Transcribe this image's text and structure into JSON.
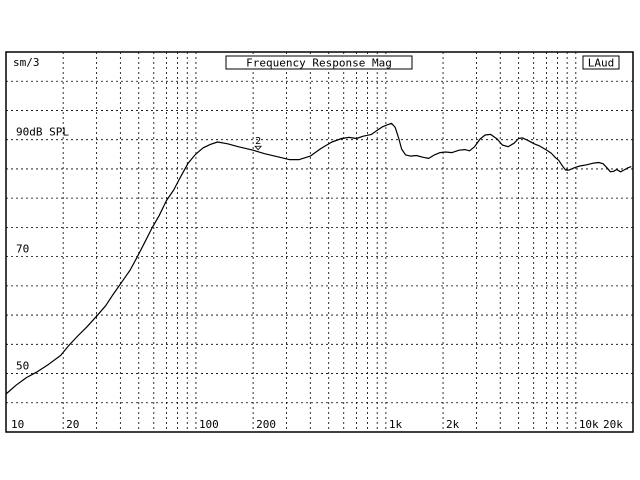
{
  "header": {
    "corner_left": "sm/3",
    "title": "Frequency Response Mag",
    "corner_right": "LAud"
  },
  "chart_data": {
    "type": "line",
    "title": "Frequency Response Mag",
    "x_scale": "log",
    "xlim": [
      10,
      20000
    ],
    "ylim": [
      40,
      105
    ],
    "grid": true,
    "x_major_ticks": [
      10,
      100,
      1000,
      10000
    ],
    "x_minor_ticks": [
      20,
      30,
      40,
      50,
      60,
      70,
      80,
      90,
      200,
      300,
      400,
      500,
      600,
      700,
      800,
      900,
      2000,
      3000,
      4000,
      5000,
      6000,
      7000,
      8000,
      9000,
      20000
    ],
    "x_tick_labels": [
      {
        "value": 10,
        "label": "10"
      },
      {
        "value": 20,
        "label": "20"
      },
      {
        "value": 100,
        "label": "100"
      },
      {
        "value": 200,
        "label": "200"
      },
      {
        "value": 1000,
        "label": "1k"
      },
      {
        "value": 2000,
        "label": "2k"
      },
      {
        "value": 10000,
        "label": "10k"
      },
      {
        "value": 20000,
        "label": "20k"
      }
    ],
    "y_gridlines": [
      45,
      50,
      55,
      60,
      65,
      70,
      75,
      80,
      85,
      90,
      95,
      100
    ],
    "y_tick_labels": [
      {
        "value": 90,
        "label": "90dB SPL"
      },
      {
        "value": 70,
        "label": "70"
      },
      {
        "value": 50,
        "label": "50"
      }
    ],
    "series": [
      {
        "marker": "2",
        "marker_x": 200,
        "points": [
          [
            10,
            46.5
          ],
          [
            11.3,
            48
          ],
          [
            12.8,
            49.3
          ],
          [
            14.6,
            50.3
          ],
          [
            16.8,
            51.6
          ],
          [
            19.4,
            53.1
          ],
          [
            21.4,
            54.8
          ],
          [
            24,
            56.5
          ],
          [
            26.7,
            58
          ],
          [
            30,
            59.8
          ],
          [
            33.5,
            61.6
          ],
          [
            36.6,
            63.5
          ],
          [
            41,
            65.8
          ],
          [
            45,
            67.7
          ],
          [
            49,
            69.9
          ],
          [
            53.5,
            72.3
          ],
          [
            58.5,
            74.8
          ],
          [
            64,
            77
          ],
          [
            70,
            79.6
          ],
          [
            76.4,
            81.4
          ],
          [
            83.5,
            83.8
          ],
          [
            91,
            86
          ],
          [
            99.6,
            87.5
          ],
          [
            109,
            88.6
          ],
          [
            119,
            89.2
          ],
          [
            130,
            89.6
          ],
          [
            147,
            89.3
          ],
          [
            167,
            88.8
          ],
          [
            200,
            88.2
          ],
          [
            230,
            87.6
          ],
          [
            275,
            87
          ],
          [
            310,
            86.6
          ],
          [
            350,
            86.6
          ],
          [
            400,
            87.2
          ],
          [
            455,
            88.5
          ],
          [
            520,
            89.6
          ],
          [
            585,
            90.2
          ],
          [
            640,
            90.4
          ],
          [
            700,
            90.2
          ],
          [
            760,
            90.6
          ],
          [
            840,
            90.9
          ],
          [
            900,
            91.6
          ],
          [
            960,
            92.2
          ],
          [
            1010,
            92.5
          ],
          [
            1070,
            92.8
          ],
          [
            1120,
            92.1
          ],
          [
            1170,
            90.2
          ],
          [
            1210,
            88.4
          ],
          [
            1270,
            87.4
          ],
          [
            1350,
            87.2
          ],
          [
            1450,
            87.3
          ],
          [
            1560,
            87
          ],
          [
            1680,
            86.8
          ],
          [
            1800,
            87.4
          ],
          [
            1930,
            87.8
          ],
          [
            2060,
            87.9
          ],
          [
            2230,
            87.8
          ],
          [
            2430,
            88.2
          ],
          [
            2600,
            88.3
          ],
          [
            2760,
            88.1
          ],
          [
            2930,
            88.8
          ],
          [
            3130,
            90.1
          ],
          [
            3330,
            90.8
          ],
          [
            3560,
            90.9
          ],
          [
            3860,
            90.1
          ],
          [
            4100,
            89.1
          ],
          [
            4400,
            88.8
          ],
          [
            4730,
            89.4
          ],
          [
            5000,
            90.2
          ],
          [
            5240,
            90.3
          ],
          [
            5580,
            89.9
          ],
          [
            6040,
            89.3
          ],
          [
            6460,
            88.9
          ],
          [
            6950,
            88.3
          ],
          [
            7420,
            87.7
          ],
          [
            7830,
            86.9
          ],
          [
            8120,
            86.5
          ],
          [
            8550,
            85.4
          ],
          [
            8850,
            84.8
          ],
          [
            9200,
            84.8
          ],
          [
            9800,
            85.2
          ],
          [
            10500,
            85.5
          ],
          [
            11400,
            85.7
          ],
          [
            12400,
            86.0
          ],
          [
            13200,
            86.1
          ],
          [
            13900,
            85.9
          ],
          [
            14600,
            85.2
          ],
          [
            15200,
            84.5
          ],
          [
            15800,
            84.6
          ],
          [
            16400,
            84.9
          ],
          [
            17200,
            84.5
          ],
          [
            17900,
            84.8
          ],
          [
            18800,
            85.2
          ],
          [
            19600,
            85.4
          ]
        ]
      }
    ]
  }
}
